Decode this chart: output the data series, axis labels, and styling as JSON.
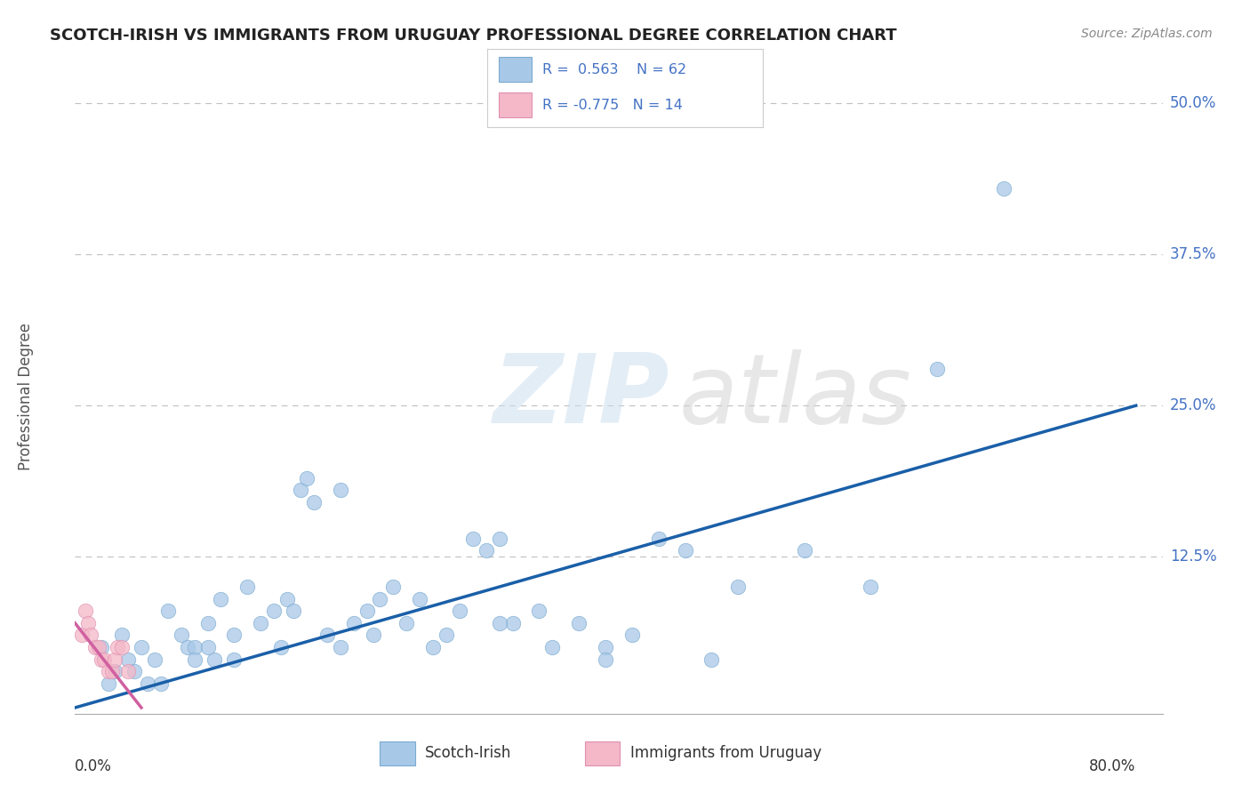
{
  "title": "SCOTCH-IRISH VS IMMIGRANTS FROM URUGUAY PROFESSIONAL DEGREE CORRELATION CHART",
  "source_text": "Source: ZipAtlas.com",
  "ylabel": "Professional Degree",
  "y_ticks": [
    0.0,
    0.125,
    0.25,
    0.375,
    0.5
  ],
  "y_tick_labels": [
    "",
    "12.5%",
    "25.0%",
    "37.5%",
    "50.0%"
  ],
  "blue_color": "#a8c8e8",
  "pink_color": "#f4b8c8",
  "line_blue": "#1a5fa8",
  "line_pink": "#d060a0",
  "scotch_irish_x": [
    0.02,
    0.025,
    0.03,
    0.035,
    0.04,
    0.045,
    0.05,
    0.055,
    0.06,
    0.065,
    0.07,
    0.08,
    0.085,
    0.09,
    0.1,
    0.105,
    0.11,
    0.12,
    0.13,
    0.14,
    0.15,
    0.155,
    0.16,
    0.165,
    0.17,
    0.175,
    0.18,
    0.19,
    0.2,
    0.21,
    0.22,
    0.225,
    0.23,
    0.24,
    0.25,
    0.26,
    0.27,
    0.28,
    0.29,
    0.3,
    0.31,
    0.32,
    0.33,
    0.35,
    0.36,
    0.38,
    0.4,
    0.42,
    0.44,
    0.46,
    0.5,
    0.55,
    0.6,
    0.65,
    0.1,
    0.09,
    0.12,
    0.2,
    0.32,
    0.4,
    0.7,
    0.48
  ],
  "scotch_irish_y": [
    0.05,
    0.02,
    0.03,
    0.06,
    0.04,
    0.03,
    0.05,
    0.02,
    0.04,
    0.02,
    0.08,
    0.06,
    0.05,
    0.05,
    0.07,
    0.04,
    0.09,
    0.06,
    0.1,
    0.07,
    0.08,
    0.05,
    0.09,
    0.08,
    0.18,
    0.19,
    0.17,
    0.06,
    0.18,
    0.07,
    0.08,
    0.06,
    0.09,
    0.1,
    0.07,
    0.09,
    0.05,
    0.06,
    0.08,
    0.14,
    0.13,
    0.14,
    0.07,
    0.08,
    0.05,
    0.07,
    0.05,
    0.06,
    0.14,
    0.13,
    0.1,
    0.13,
    0.1,
    0.28,
    0.05,
    0.04,
    0.04,
    0.05,
    0.07,
    0.04,
    0.43,
    0.04
  ],
  "uruguay_x": [
    0.005,
    0.008,
    0.01,
    0.012,
    0.015,
    0.018,
    0.02,
    0.022,
    0.025,
    0.028,
    0.03,
    0.032,
    0.035,
    0.04
  ],
  "uruguay_y": [
    0.06,
    0.08,
    0.07,
    0.06,
    0.05,
    0.05,
    0.04,
    0.04,
    0.03,
    0.03,
    0.04,
    0.05,
    0.05,
    0.03
  ],
  "blue_trend_x": [
    0.0,
    0.8
  ],
  "blue_trend_y": [
    0.0,
    0.25
  ],
  "pink_trend_x": [
    0.0,
    0.05
  ],
  "pink_trend_y": [
    0.07,
    0.0
  ],
  "xlim": [
    0.0,
    0.82
  ],
  "ylim": [
    -0.005,
    0.52
  ]
}
